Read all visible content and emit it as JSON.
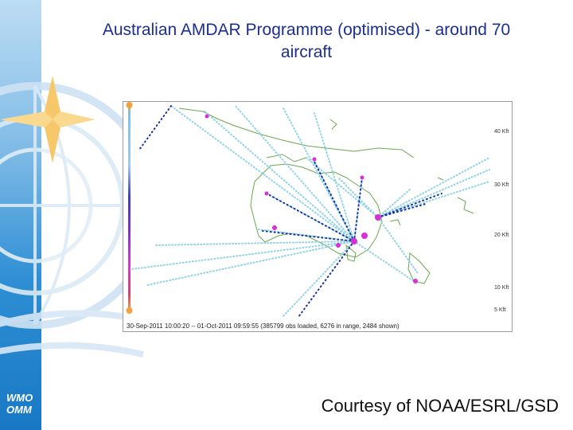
{
  "slide": {
    "title_line1": "Australian AMDAR Programme (optimised) -  around 70",
    "title_line2": "aircraft",
    "courtesy": "Courtesy of NOAA/ESRL/GSD"
  },
  "logo": {
    "line1": "WMO",
    "line2": "OMM"
  },
  "map": {
    "caption": "30-Sep-2011 10:00:20 -- 01-Oct-2011 09:59:55 (385799 obs loaded, 6276 in range, 2484 shown)",
    "altitude_scale": [
      "40 Kft",
      "30 Kft",
      "20 Kft",
      "10 Kft",
      "5 Kft"
    ]
  },
  "colors": {
    "title": "#1c2f8c",
    "sidebar": "#1878c4",
    "coast": "#6aa84f",
    "track_light": "#8fd3e8",
    "track_dark": "#1a2fa0",
    "airport": "#d92fd6"
  }
}
